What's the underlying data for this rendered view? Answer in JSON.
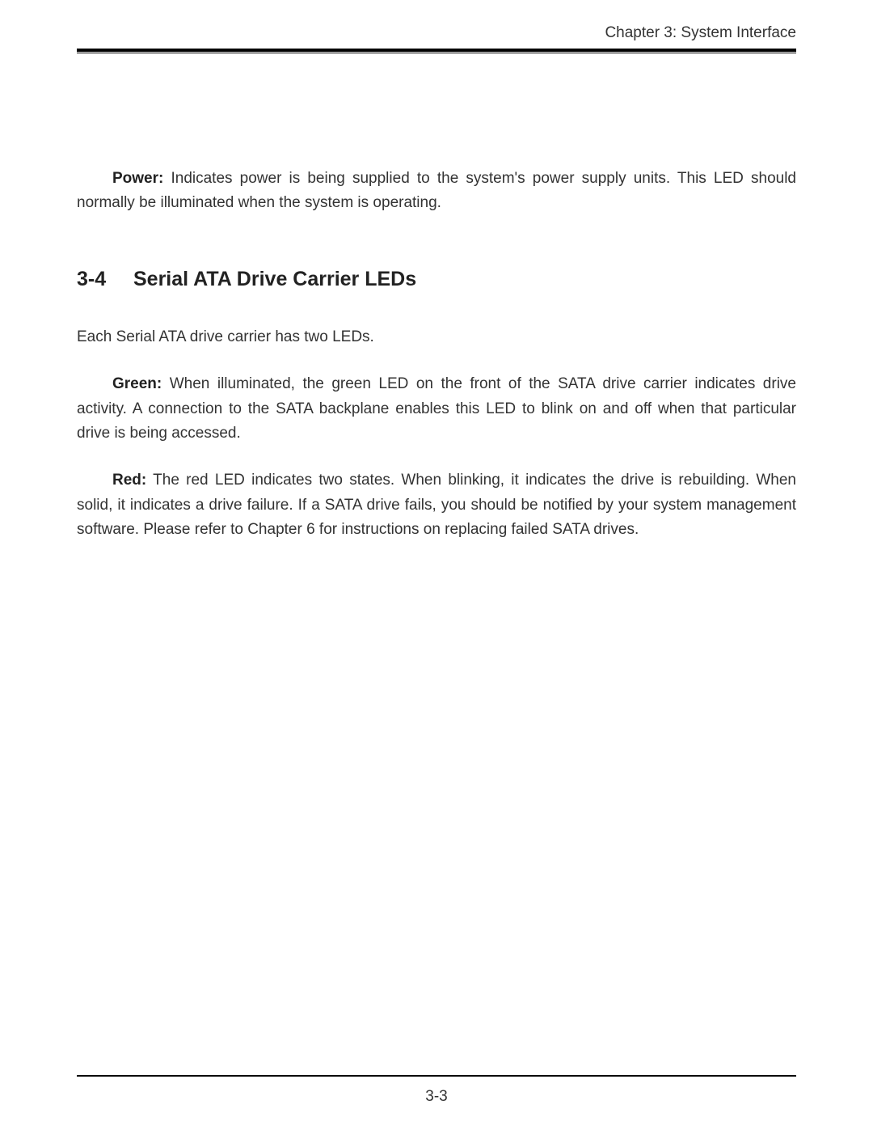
{
  "header": {
    "chapter_text": "Chapter 3: System Interface"
  },
  "paragraphs": {
    "power": {
      "label": "Power:",
      "text": "  Indicates power is being supplied to the system's power supply units.  This LED should normally be illuminated when the system is operating."
    },
    "intro": "Each Serial ATA drive carrier has two LEDs.",
    "green": {
      "label": "Green:",
      "text": "  When illuminated, the green LED on the front of the SATA drive carrier indicates drive activity.  A connection to the SATA backplane enables this LED to blink on and off when that particular drive is being accessed."
    },
    "red": {
      "label": "Red:",
      "text": "  The red LED indicates two states.  When blinking, it indicates the drive is rebuilding.  When solid, it indicates a drive failure.  If a SATA drive fails, you should be notified by your system management software.  Please refer to Chapter 6 for instructions on replacing failed SATA drives."
    }
  },
  "section": {
    "number": "3-4",
    "title": "Serial ATA Drive Carrier LEDs"
  },
  "footer": {
    "page_number": "3-3"
  },
  "styles": {
    "background_color": "#ffffff",
    "text_color": "#333333",
    "heading_color": "#222222",
    "rule_color": "#000000",
    "body_fontsize": 19,
    "heading_fontsize": 25,
    "font_family": "Arial, Helvetica, sans-serif"
  }
}
